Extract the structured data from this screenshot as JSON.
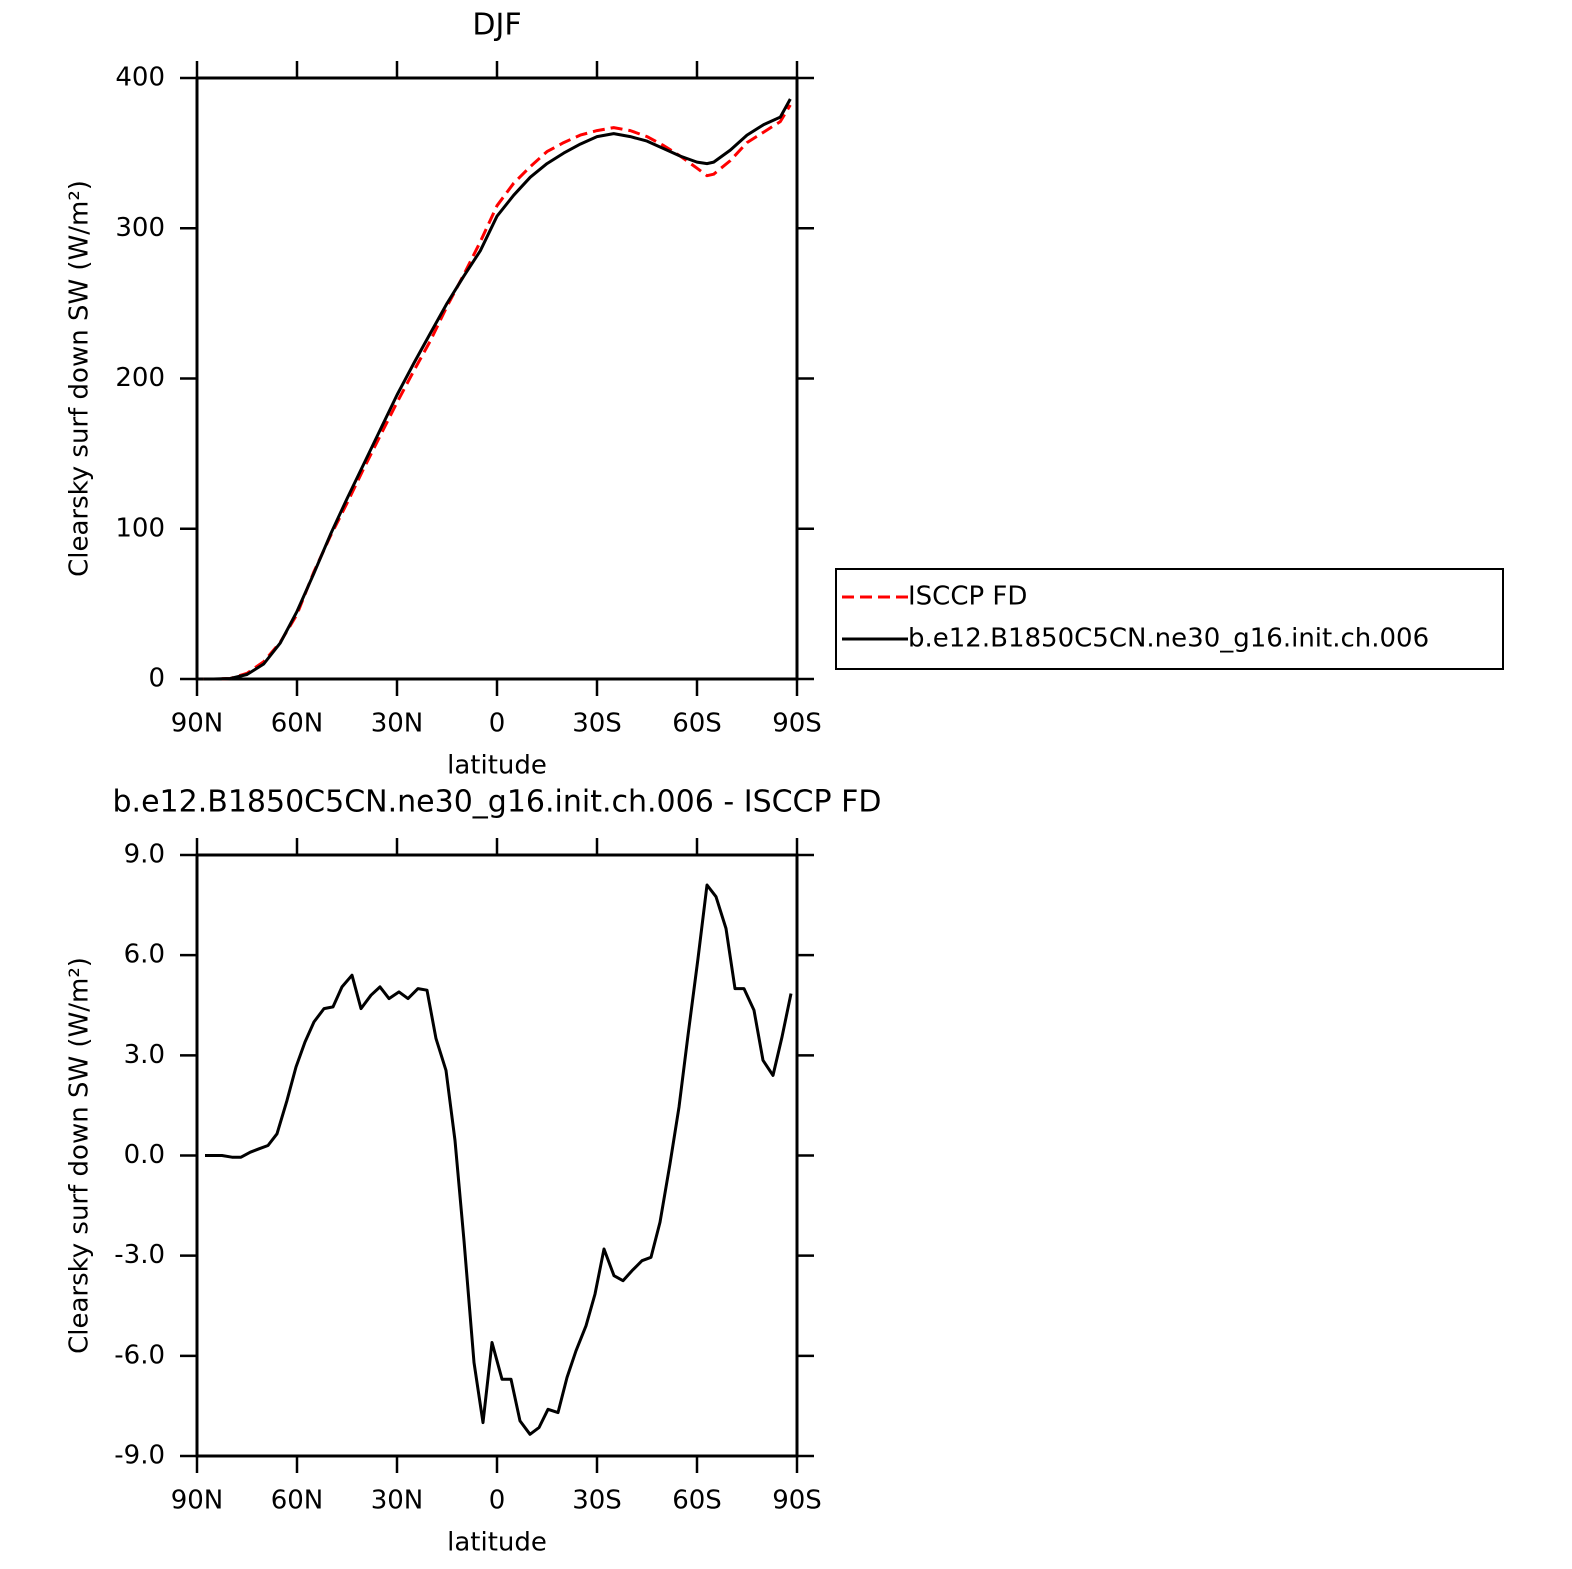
{
  "chart_data": [
    {
      "type": "line",
      "title": "DJF",
      "xlabel": "latitude",
      "ylabel": "Clearsky surf down SW (W/m²)",
      "x": [
        88,
        85,
        80,
        75,
        70,
        65,
        60,
        55,
        50,
        45,
        40,
        35,
        30,
        25,
        20,
        15,
        10,
        5,
        0,
        -5,
        -10,
        -15,
        -20,
        -25,
        -30,
        -35,
        -40,
        -45,
        -50,
        -55,
        -60,
        -63,
        -65,
        -70,
        -75,
        -80,
        -85,
        -88
      ],
      "series": [
        {
          "name": "ISCCP FD",
          "color": "#ff0000",
          "dashed": true,
          "values": [
            0,
            0,
            0.3,
            3.8,
            11.5,
            24.5,
            43,
            71,
            95,
            117,
            140,
            162,
            184,
            205,
            225,
            248,
            269,
            291,
            315,
            330,
            341,
            351,
            357,
            362,
            365,
            367,
            365,
            361,
            355,
            348,
            340,
            335,
            336,
            345,
            357,
            364,
            371,
            382
          ]
        },
        {
          "name": "b.e12.B1850C5CN.ne30_g16.init.ch.006",
          "color": "#000000",
          "dashed": false,
          "values": [
            0,
            0,
            0.3,
            3,
            10,
            24,
            45,
            70,
            96,
            120,
            143,
            166,
            189,
            210,
            230,
            250,
            268,
            285,
            308,
            322,
            334,
            343,
            350,
            356,
            361,
            363,
            361,
            358,
            353,
            348,
            344,
            343,
            344,
            352,
            362,
            369,
            374,
            386
          ]
        }
      ],
      "xlim": [
        90,
        -90
      ],
      "xticks": [
        {
          "value": 90,
          "label": "90N"
        },
        {
          "value": 60,
          "label": "60N"
        },
        {
          "value": 30,
          "label": "30N"
        },
        0,
        {
          "value": -30,
          "label": "30S"
        },
        {
          "value": -60,
          "label": "60S"
        },
        {
          "value": -90,
          "label": "90S"
        }
      ],
      "ylim": [
        0,
        400
      ],
      "yticks": [
        0,
        100,
        200,
        300,
        400
      ],
      "legend": "right"
    },
    {
      "type": "line",
      "title": "b.e12.B1850C5CN.ne30_g16.init.ch.006 - ISCCP FD",
      "xlabel": "latitude",
      "ylabel": "Clearsky surf down SW (W/m²)",
      "x": [
        87.6,
        82.5,
        79.5,
        76.8,
        74,
        71.4,
        68.7,
        66,
        63,
        60.3,
        57.6,
        54.9,
        51.9,
        49.2,
        46.5,
        43.5,
        40.8,
        37.8,
        35.1,
        32.4,
        29.4,
        26.7,
        23.7,
        21,
        18.3,
        15.3,
        12.6,
        9.9,
        6.9,
        4.2,
        1.5,
        -1.5,
        -4.2,
        -6.9,
        -9.9,
        -12.6,
        -15.3,
        -18.3,
        -21,
        -23.7,
        -26.7,
        -29.4,
        -32.1,
        -35.1,
        -37.8,
        -40.5,
        -43.5,
        -46.2,
        -48.9,
        -51.9,
        -54.6,
        -57.3,
        -60.3,
        -63,
        -65.7,
        -68.7,
        -71.4,
        -74.1,
        -77.1,
        -79.8,
        -82.8,
        -85.5,
        -88.2
      ],
      "values": [
        0,
        0,
        -0.05,
        -0.05,
        0.1,
        0.2,
        0.3,
        0.65,
        1.65,
        2.65,
        3.4,
        4.0,
        4.4,
        4.45,
        5.05,
        5.4,
        4.4,
        4.8,
        5.05,
        4.7,
        4.9,
        4.7,
        5.0,
        4.95,
        3.5,
        2.55,
        0.45,
        -2.55,
        -6.2,
        -8.0,
        -5.6,
        -6.7,
        -6.7,
        -7.95,
        -8.35,
        -8.15,
        -7.6,
        -7.7,
        -6.65,
        -5.85,
        -5.1,
        -4.15,
        -2.8,
        -3.6,
        -3.75,
        -3.45,
        -3.15,
        -3.05,
        -2.0,
        -0.25,
        1.45,
        3.6,
        5.9,
        8.1,
        7.75,
        6.8,
        5.0,
        5.0,
        4.35,
        2.85,
        2.4,
        3.55,
        4.85
      ],
      "color": "#000000",
      "xlim": [
        90,
        -90
      ],
      "xticks": [
        {
          "value": 90,
          "label": "90N"
        },
        {
          "value": 60,
          "label": "60N"
        },
        {
          "value": 30,
          "label": "30N"
        },
        0,
        {
          "value": -30,
          "label": "30S"
        },
        {
          "value": -60,
          "label": "60S"
        },
        {
          "value": -90,
          "label": "90S"
        }
      ],
      "ylim": [
        -9,
        9
      ],
      "yticks": [
        {
          "value": -9,
          "label": "-9.0"
        },
        {
          "value": -6,
          "label": "-6.0"
        },
        {
          "value": -3,
          "label": "-3.0"
        },
        {
          "value": 0,
          "label": "0.0"
        },
        {
          "value": 3,
          "label": "3.0"
        },
        {
          "value": 6,
          "label": "6.0"
        },
        {
          "value": 9,
          "label": "9.0"
        }
      ]
    }
  ]
}
